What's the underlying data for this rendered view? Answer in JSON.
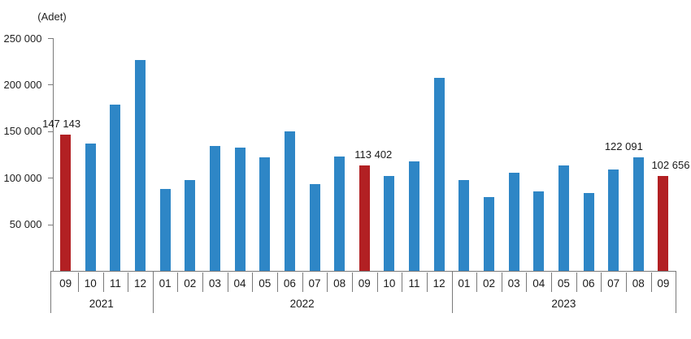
{
  "chart_data": {
    "type": "bar",
    "title": "",
    "unit_label": "(Adet)",
    "xlabel": "",
    "ylabel": "(Adet)",
    "ylim": [
      0,
      250000
    ],
    "ytick_interval": 50000,
    "ytick_labels": [
      "50 000",
      "100 000",
      "150 000",
      "200 000",
      "250 000"
    ],
    "grid": false,
    "legend": "none",
    "colors": {
      "bar": "#2e86c6",
      "highlight": "#b22023",
      "axis": "#7a7a7a",
      "text": "#1a1a1a"
    },
    "bars": [
      {
        "year": "2021",
        "month": "09",
        "value": 147143,
        "highlight": true,
        "data_label": "147 143",
        "label_dx": -5
      },
      {
        "year": "2021",
        "month": "10",
        "value": 137401,
        "highlight": false
      },
      {
        "year": "2021",
        "month": "11",
        "value": 178814,
        "highlight": false
      },
      {
        "year": "2021",
        "month": "12",
        "value": 226503,
        "highlight": false
      },
      {
        "year": "2022",
        "month": "01",
        "value": 88306,
        "highlight": false
      },
      {
        "year": "2022",
        "month": "02",
        "value": 97587,
        "highlight": false
      },
      {
        "year": "2022",
        "month": "03",
        "value": 134170,
        "highlight": false
      },
      {
        "year": "2022",
        "month": "04",
        "value": 133058,
        "highlight": false
      },
      {
        "year": "2022",
        "month": "05",
        "value": 122768,
        "highlight": false
      },
      {
        "year": "2022",
        "month": "06",
        "value": 150509,
        "highlight": false
      },
      {
        "year": "2022",
        "month": "07",
        "value": 93902,
        "highlight": false
      },
      {
        "year": "2022",
        "month": "08",
        "value": 123491,
        "highlight": false
      },
      {
        "year": "2022",
        "month": "09",
        "value": 113402,
        "highlight": true,
        "data_label": "113 402",
        "label_dx": 11
      },
      {
        "year": "2022",
        "month": "10",
        "value": 102660,
        "highlight": false
      },
      {
        "year": "2022",
        "month": "11",
        "value": 117806,
        "highlight": false
      },
      {
        "year": "2022",
        "month": "12",
        "value": 207963,
        "highlight": false
      },
      {
        "year": "2023",
        "month": "01",
        "value": 97708,
        "highlight": false
      },
      {
        "year": "2023",
        "month": "02",
        "value": 80031,
        "highlight": false
      },
      {
        "year": "2023",
        "month": "03",
        "value": 105476,
        "highlight": false
      },
      {
        "year": "2023",
        "month": "04",
        "value": 85652,
        "highlight": false
      },
      {
        "year": "2023",
        "month": "05",
        "value": 113296,
        "highlight": false
      },
      {
        "year": "2023",
        "month": "06",
        "value": 83636,
        "highlight": false
      },
      {
        "year": "2023",
        "month": "07",
        "value": 109548,
        "highlight": false
      },
      {
        "year": "2023",
        "month": "08",
        "value": 122091,
        "highlight": false,
        "data_label": "122 091",
        "label_dx": -18
      },
      {
        "year": "2023",
        "month": "09",
        "value": 102656,
        "highlight": true,
        "data_label": "102 656",
        "label_dx": 9
      }
    ],
    "year_groups": [
      "2021",
      "2022",
      "2023"
    ]
  }
}
